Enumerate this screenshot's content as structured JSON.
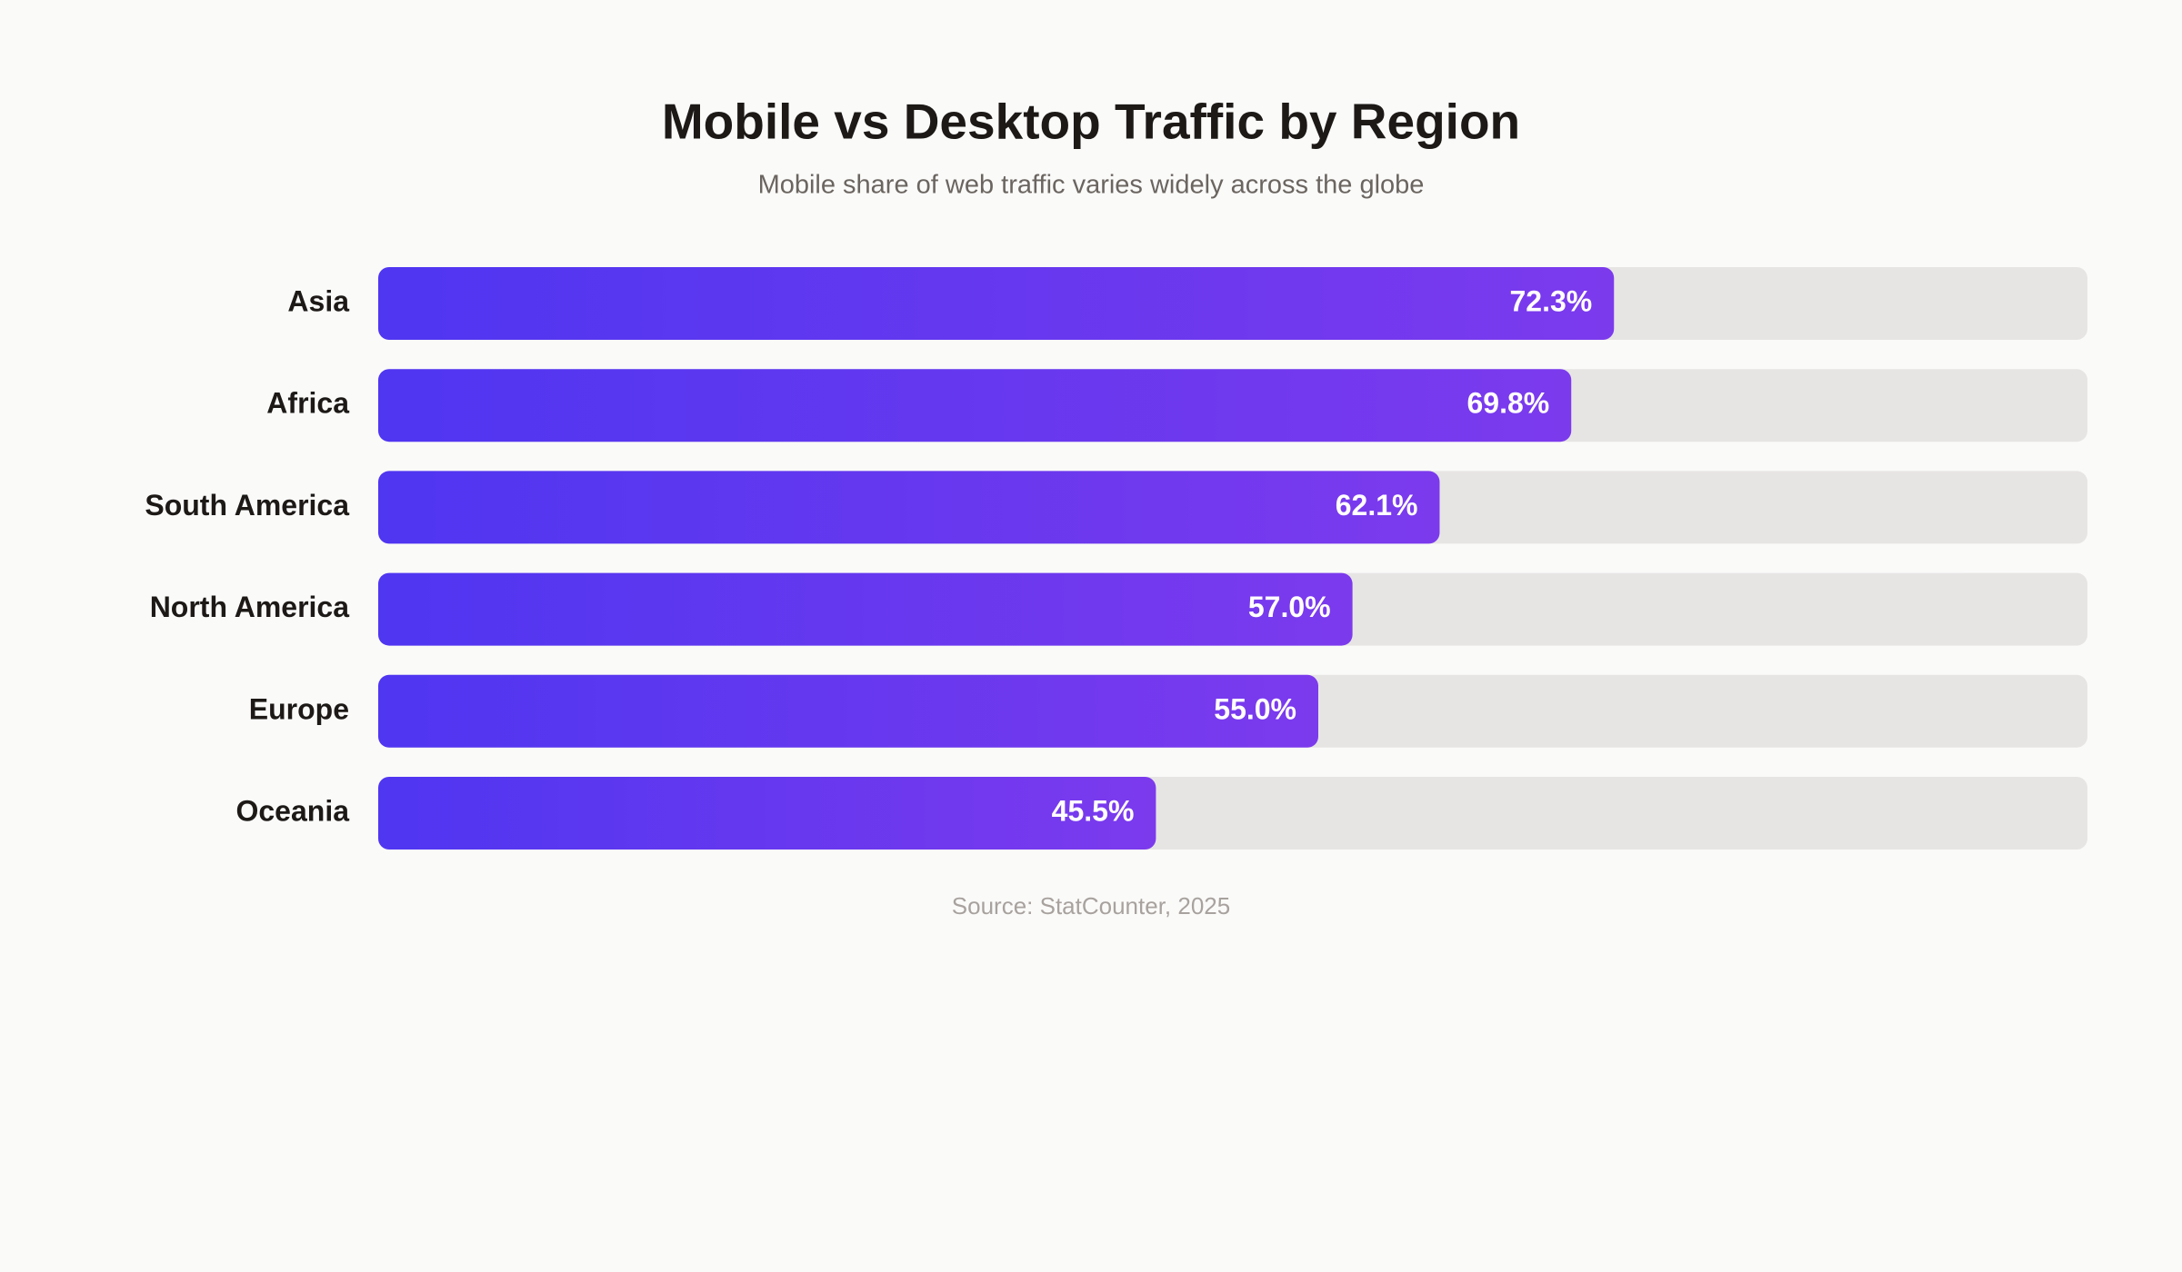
{
  "chart_data": {
    "type": "bar",
    "orientation": "horizontal",
    "title": "Mobile vs Desktop Traffic by Region",
    "subtitle": "Mobile share of web traffic varies widely across the globe",
    "categories": [
      "Asia",
      "Africa",
      "South America",
      "North America",
      "Europe",
      "Oceania"
    ],
    "values": [
      72.3,
      69.8,
      62.1,
      57.0,
      55.0,
      45.5
    ],
    "value_labels": [
      "72.3%",
      "69.8%",
      "62.1%",
      "57.0%",
      "55.0%",
      "45.5%"
    ],
    "xlim": [
      0,
      100
    ],
    "gradient": [
      "#4f36f1",
      "#7c3aed"
    ],
    "track_color": "#e7e5e4",
    "source": "Source: StatCounter, 2025"
  }
}
